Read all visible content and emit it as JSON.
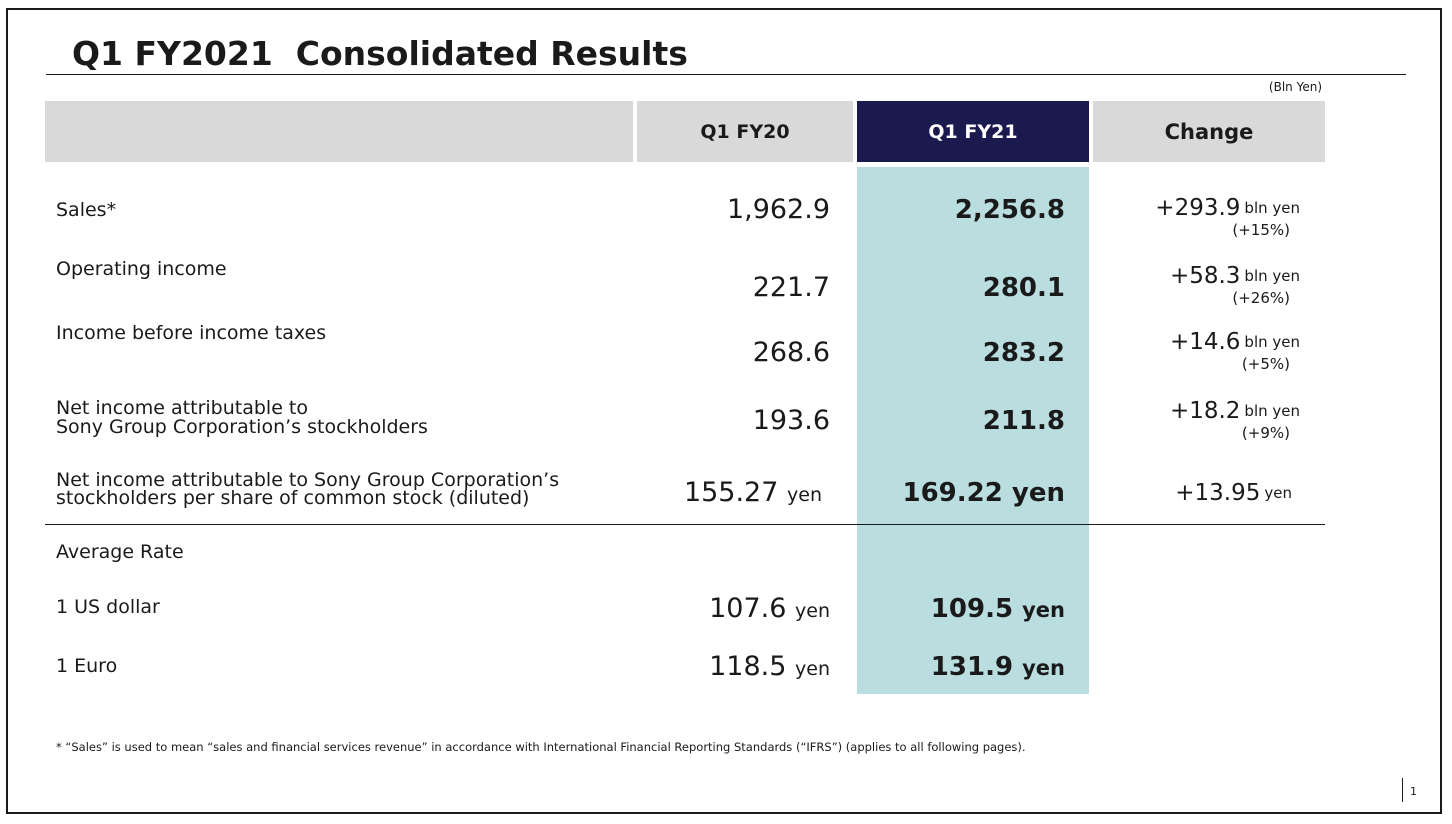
{
  "title": "Q1 FY2021  Consolidated Results",
  "unit_note": "(Bln Yen)",
  "headers": {
    "prev": "Q1 FY20",
    "curr": "Q1 FY21",
    "change": "Change"
  },
  "rows": [
    {
      "label": "Sales*",
      "prev": "1,962.9",
      "curr": "2,256.8",
      "change": "+293.9",
      "change_unit": "bln yen",
      "pct": "(+15%)"
    },
    {
      "label": "Operating income",
      "prev": "221.7",
      "curr": "280.1",
      "change": "+58.3",
      "change_unit": "bln yen",
      "pct": "(+26%)"
    },
    {
      "label": "Income before income taxes",
      "prev": "268.6",
      "curr": "283.2",
      "change": "+14.6",
      "change_unit": "bln yen",
      "pct": "(+5%)"
    },
    {
      "label_line1": "Net income attributable to",
      "label_line2": "Sony Group Corporation’s stockholders",
      "prev": "193.6",
      "curr": "211.8",
      "change": "+18.2",
      "change_unit": "bln yen",
      "pct": "(+9%)"
    },
    {
      "label_line1": "Net income attributable to Sony Group Corporation’s",
      "label_line2": "stockholders per share of common stock (diluted)",
      "prev": "155.27",
      "prev_unit": "yen",
      "curr": "169.22",
      "curr_unit": "yen",
      "change": "+13.95",
      "change_unit": "yen"
    }
  ],
  "rates": {
    "heading": "Average Rate",
    "items": [
      {
        "label": "1 US dollar",
        "prev": "107.6",
        "prev_unit": "yen",
        "curr": "109.5",
        "curr_unit": "yen"
      },
      {
        "label": "1 Euro",
        "prev": "118.5",
        "prev_unit": "yen",
        "curr": "131.9",
        "curr_unit": "yen"
      }
    ]
  },
  "footnote": "* “Sales” is used to mean “sales and financial services revenue” in accordance with International Financial Reporting Standards (“IFRS”) (applies to all following pages).",
  "page_number": "1",
  "colors": {
    "header_gray": "#d9d9d9",
    "header_navy": "#1b1a4e",
    "highlight": "#badde0"
  }
}
